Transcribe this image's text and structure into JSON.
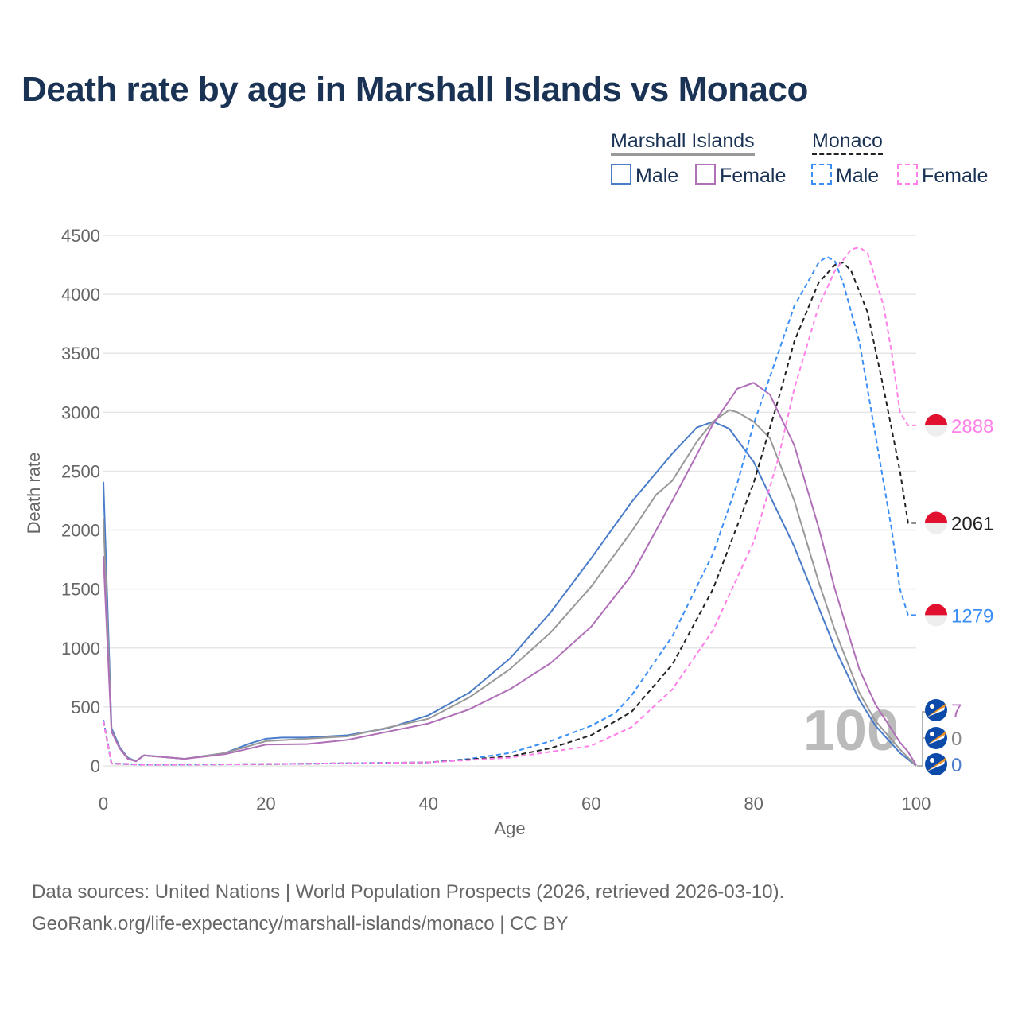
{
  "title": "Death rate by age in Marshall Islands vs Monaco",
  "legend": {
    "group1": "Marshall Islands",
    "group2": "Monaco",
    "male": "Male",
    "female": "Female"
  },
  "footer": {
    "line1": "Data sources: United Nations | World Population Prospects (2026, retrieved 2026-03-10).",
    "line2": "GeoRank.org/life-expectancy/marshall-islands/monaco | CC BY"
  },
  "chart_data": {
    "type": "line",
    "xlabel": "Age",
    "ylabel": "Death rate",
    "xlim": [
      0,
      100
    ],
    "ylim": [
      0,
      4500
    ],
    "xticks": [
      0,
      20,
      40,
      60,
      80,
      100
    ],
    "yticks": [
      0,
      500,
      1000,
      1500,
      2000,
      2500,
      3000,
      3500,
      4000,
      4500
    ],
    "age_watermark": "100",
    "series": [
      {
        "name": "Marshall Islands Male",
        "color": "#4a7cc9",
        "dash": false,
        "end_label": "0",
        "flag": "mh",
        "pts": [
          [
            0,
            2410
          ],
          [
            1,
            320
          ],
          [
            2,
            160
          ],
          [
            3,
            70
          ],
          [
            4,
            40
          ],
          [
            5,
            90
          ],
          [
            10,
            60
          ],
          [
            15,
            110
          ],
          [
            18,
            190
          ],
          [
            20,
            230
          ],
          [
            22,
            240
          ],
          [
            25,
            240
          ],
          [
            30,
            260
          ],
          [
            35,
            320
          ],
          [
            40,
            430
          ],
          [
            45,
            620
          ],
          [
            50,
            910
          ],
          [
            55,
            1300
          ],
          [
            60,
            1760
          ],
          [
            65,
            2240
          ],
          [
            70,
            2650
          ],
          [
            73,
            2870
          ],
          [
            75,
            2920
          ],
          [
            77,
            2860
          ],
          [
            80,
            2580
          ],
          [
            85,
            1860
          ],
          [
            90,
            1000
          ],
          [
            93,
            560
          ],
          [
            95,
            340
          ],
          [
            98,
            110
          ],
          [
            100,
            0
          ]
        ]
      },
      {
        "name": "Marshall Islands Total",
        "color": "#999999",
        "dash": false,
        "end_label": "0",
        "flag": "mh",
        "pts": [
          [
            0,
            2100
          ],
          [
            1,
            300
          ],
          [
            2,
            150
          ],
          [
            3,
            65
          ],
          [
            4,
            40
          ],
          [
            5,
            90
          ],
          [
            10,
            60
          ],
          [
            15,
            110
          ],
          [
            20,
            210
          ],
          [
            30,
            250
          ],
          [
            40,
            400
          ],
          [
            45,
            580
          ],
          [
            50,
            820
          ],
          [
            55,
            1130
          ],
          [
            60,
            1520
          ],
          [
            65,
            1990
          ],
          [
            68,
            2300
          ],
          [
            70,
            2420
          ],
          [
            73,
            2750
          ],
          [
            75,
            2920
          ],
          [
            77,
            3020
          ],
          [
            78,
            3000
          ],
          [
            80,
            2920
          ],
          [
            82,
            2780
          ],
          [
            85,
            2250
          ],
          [
            88,
            1560
          ],
          [
            90,
            1150
          ],
          [
            93,
            620
          ],
          [
            95,
            380
          ],
          [
            98,
            140
          ],
          [
            100,
            0
          ]
        ]
      },
      {
        "name": "Marshall Islands Female",
        "color": "#b070b8",
        "dash": false,
        "end_label": "7",
        "flag": "mh",
        "pts": [
          [
            0,
            1780
          ],
          [
            1,
            290
          ],
          [
            2,
            150
          ],
          [
            3,
            60
          ],
          [
            4,
            40
          ],
          [
            5,
            90
          ],
          [
            10,
            60
          ],
          [
            15,
            100
          ],
          [
            20,
            180
          ],
          [
            25,
            185
          ],
          [
            30,
            220
          ],
          [
            40,
            360
          ],
          [
            45,
            480
          ],
          [
            50,
            650
          ],
          [
            55,
            870
          ],
          [
            60,
            1180
          ],
          [
            65,
            1620
          ],
          [
            70,
            2250
          ],
          [
            75,
            2900
          ],
          [
            78,
            3200
          ],
          [
            80,
            3250
          ],
          [
            82,
            3150
          ],
          [
            85,
            2720
          ],
          [
            88,
            2020
          ],
          [
            90,
            1500
          ],
          [
            93,
            820
          ],
          [
            95,
            520
          ],
          [
            98,
            200
          ],
          [
            99,
            120
          ],
          [
            100,
            7
          ]
        ]
      },
      {
        "name": "Monaco Male",
        "color": "#3a8ef6",
        "dash": true,
        "end_label": "1279",
        "flag": "mc",
        "pts": [
          [
            0,
            390
          ],
          [
            1,
            20
          ],
          [
            5,
            10
          ],
          [
            20,
            15
          ],
          [
            40,
            30
          ],
          [
            45,
            60
          ],
          [
            50,
            110
          ],
          [
            55,
            210
          ],
          [
            60,
            340
          ],
          [
            63,
            450
          ],
          [
            65,
            600
          ],
          [
            70,
            1100
          ],
          [
            75,
            1800
          ],
          [
            78,
            2400
          ],
          [
            80,
            2900
          ],
          [
            83,
            3500
          ],
          [
            85,
            3900
          ],
          [
            88,
            4270
          ],
          [
            89,
            4320
          ],
          [
            90,
            4280
          ],
          [
            91,
            4100
          ],
          [
            93,
            3600
          ],
          [
            95,
            2800
          ],
          [
            97,
            2000
          ],
          [
            98,
            1500
          ],
          [
            99,
            1279
          ],
          [
            100,
            1279
          ]
        ]
      },
      {
        "name": "Monaco Total",
        "color": "#222222",
        "dash": true,
        "end_label": "2061",
        "flag": "mc",
        "pts": [
          [
            0,
            380
          ],
          [
            1,
            20
          ],
          [
            5,
            10
          ],
          [
            20,
            15
          ],
          [
            40,
            30
          ],
          [
            50,
            80
          ],
          [
            55,
            150
          ],
          [
            60,
            260
          ],
          [
            65,
            460
          ],
          [
            70,
            860
          ],
          [
            75,
            1500
          ],
          [
            80,
            2400
          ],
          [
            83,
            3100
          ],
          [
            85,
            3600
          ],
          [
            88,
            4100
          ],
          [
            90,
            4250
          ],
          [
            91,
            4270
          ],
          [
            92,
            4200
          ],
          [
            94,
            3850
          ],
          [
            96,
            3200
          ],
          [
            98,
            2500
          ],
          [
            99,
            2061
          ],
          [
            100,
            2061
          ]
        ]
      },
      {
        "name": "Monaco Female",
        "color": "#ff80e8",
        "dash": true,
        "end_label": "2888",
        "flag": "mc",
        "pts": [
          [
            0,
            380
          ],
          [
            1,
            20
          ],
          [
            5,
            10
          ],
          [
            20,
            15
          ],
          [
            40,
            30
          ],
          [
            50,
            70
          ],
          [
            60,
            170
          ],
          [
            65,
            330
          ],
          [
            70,
            650
          ],
          [
            75,
            1150
          ],
          [
            80,
            1900
          ],
          [
            83,
            2600
          ],
          [
            85,
            3200
          ],
          [
            88,
            3900
          ],
          [
            90,
            4200
          ],
          [
            92,
            4380
          ],
          [
            93,
            4400
          ],
          [
            94,
            4350
          ],
          [
            96,
            3900
          ],
          [
            97,
            3500
          ],
          [
            98,
            3000
          ],
          [
            99,
            2888
          ],
          [
            100,
            2888
          ]
        ]
      }
    ]
  }
}
